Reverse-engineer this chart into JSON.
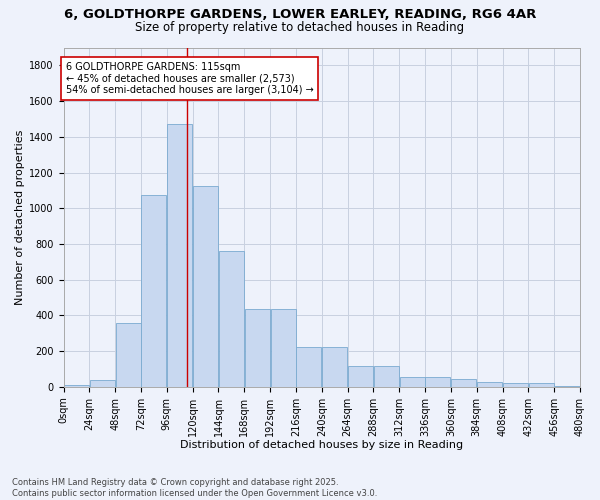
{
  "title_line1": "6, GOLDTHORPE GARDENS, LOWER EARLEY, READING, RG6 4AR",
  "title_line2": "Size of property relative to detached houses in Reading",
  "xlabel": "Distribution of detached houses by size in Reading",
  "ylabel": "Number of detached properties",
  "bar_bins": [
    0,
    24,
    48,
    72,
    96,
    120,
    144,
    168,
    192,
    216,
    240,
    264,
    288,
    312,
    336,
    360,
    384,
    408,
    432,
    456,
    480
  ],
  "bar_heights": [
    10,
    40,
    360,
    1075,
    1470,
    1125,
    760,
    435,
    435,
    225,
    225,
    115,
    115,
    55,
    55,
    45,
    30,
    20,
    20,
    5
  ],
  "bar_color": "#c8d8f0",
  "bar_edgecolor": "#7aaad0",
  "grid_color": "#c8d0e0",
  "background_color": "#eef2fb",
  "vline_x": 115,
  "vline_color": "#cc0000",
  "annotation_text": "6 GOLDTHORPE GARDENS: 115sqm\n← 45% of detached houses are smaller (2,573)\n54% of semi-detached houses are larger (3,104) →",
  "annotation_box_color": "#ffffff",
  "annotation_box_edgecolor": "#cc0000",
  "ylim": [
    0,
    1900
  ],
  "yticks": [
    0,
    200,
    400,
    600,
    800,
    1000,
    1200,
    1400,
    1600,
    1800
  ],
  "footnote": "Contains HM Land Registry data © Crown copyright and database right 2025.\nContains public sector information licensed under the Open Government Licence v3.0.",
  "title_fontsize": 9.5,
  "subtitle_fontsize": 8.5,
  "label_fontsize": 8,
  "tick_fontsize": 7,
  "annot_fontsize": 7
}
